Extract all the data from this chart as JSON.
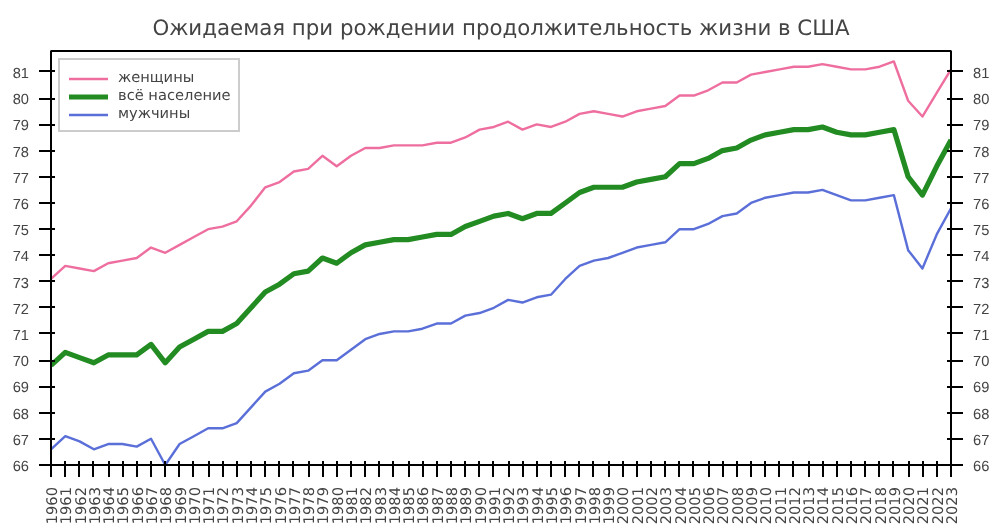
{
  "chart_data": {
    "type": "line",
    "title": "Ожидаемая при рождении продолжительность жизни в США",
    "x": [
      1960,
      1961,
      1962,
      1963,
      1964,
      1965,
      1966,
      1967,
      1968,
      1969,
      1970,
      1971,
      1972,
      1973,
      1974,
      1975,
      1976,
      1977,
      1978,
      1979,
      1980,
      1981,
      1982,
      1983,
      1984,
      1985,
      1986,
      1987,
      1988,
      1989,
      1990,
      1991,
      1992,
      1993,
      1994,
      1995,
      1996,
      1997,
      1998,
      1999,
      2000,
      2001,
      2002,
      2003,
      2004,
      2005,
      2006,
      2007,
      2008,
      2009,
      2010,
      2011,
      2012,
      2013,
      2014,
      2015,
      2016,
      2017,
      2018,
      2019,
      2020,
      2021,
      2022,
      2023
    ],
    "series": [
      {
        "name": "женщины",
        "color": "#ee6f9f",
        "values": [
          73.1,
          73.6,
          73.5,
          73.4,
          73.7,
          73.8,
          73.9,
          74.3,
          74.1,
          74.4,
          74.7,
          75.0,
          75.1,
          75.3,
          75.9,
          76.6,
          76.8,
          77.2,
          77.3,
          77.8,
          77.4,
          77.8,
          78.1,
          78.1,
          78.2,
          78.2,
          78.2,
          78.3,
          78.3,
          78.5,
          78.8,
          78.9,
          79.1,
          78.8,
          79.0,
          78.9,
          79.1,
          79.4,
          79.5,
          79.4,
          79.3,
          79.5,
          79.6,
          79.7,
          80.1,
          80.1,
          80.3,
          80.6,
          80.6,
          80.9,
          81.0,
          81.1,
          81.2,
          81.2,
          81.3,
          81.2,
          81.1,
          81.1,
          81.2,
          81.4,
          79.9,
          79.3,
          80.2,
          81.1
        ]
      },
      {
        "name": "всё население",
        "color": "#228b22",
        "values": [
          69.8,
          70.3,
          70.1,
          69.9,
          70.2,
          70.2,
          70.2,
          70.6,
          69.9,
          70.5,
          70.8,
          71.1,
          71.1,
          71.4,
          72.0,
          72.6,
          72.9,
          73.3,
          73.4,
          73.9,
          73.7,
          74.1,
          74.4,
          74.5,
          74.6,
          74.6,
          74.7,
          74.8,
          74.8,
          75.1,
          75.3,
          75.5,
          75.6,
          75.4,
          75.6,
          75.6,
          76.0,
          76.4,
          76.6,
          76.6,
          76.6,
          76.8,
          76.9,
          77.0,
          77.5,
          77.5,
          77.7,
          78.0,
          78.1,
          78.4,
          78.6,
          78.7,
          78.8,
          78.8,
          78.9,
          78.7,
          78.6,
          78.6,
          78.7,
          78.8,
          77.0,
          76.3,
          77.4,
          78.4
        ]
      },
      {
        "name": "мужчины",
        "color": "#5b6fd8",
        "values": [
          66.6,
          67.1,
          66.9,
          66.6,
          66.8,
          66.8,
          66.7,
          67.0,
          66.0,
          66.8,
          67.1,
          67.4,
          67.4,
          67.6,
          68.2,
          68.8,
          69.1,
          69.5,
          69.6,
          70.0,
          70.0,
          70.4,
          70.8,
          71.0,
          71.1,
          71.1,
          71.2,
          71.4,
          71.4,
          71.7,
          71.8,
          72.0,
          72.3,
          72.2,
          72.4,
          72.5,
          73.1,
          73.6,
          73.8,
          73.9,
          74.1,
          74.3,
          74.4,
          74.5,
          75.0,
          75.0,
          75.2,
          75.5,
          75.6,
          76.0,
          76.2,
          76.3,
          76.4,
          76.4,
          76.5,
          76.3,
          76.1,
          76.1,
          76.2,
          76.3,
          74.2,
          73.5,
          74.8,
          75.8
        ]
      }
    ],
    "xlim": [
      1960,
      2023
    ],
    "xticks": [
      1960,
      1961,
      1962,
      1963,
      1964,
      1965,
      1966,
      1967,
      1968,
      1969,
      1970,
      1971,
      1972,
      1973,
      1974,
      1975,
      1976,
      1977,
      1978,
      1979,
      1980,
      1981,
      1982,
      1983,
      1984,
      1985,
      1986,
      1987,
      1988,
      1989,
      1990,
      1991,
      1992,
      1993,
      1994,
      1995,
      1996,
      1997,
      1998,
      1999,
      2000,
      2001,
      2002,
      2003,
      2004,
      2005,
      2006,
      2007,
      2008,
      2009,
      2010,
      2011,
      2012,
      2013,
      2014,
      2015,
      2016,
      2017,
      2018,
      2019,
      2020,
      2021,
      2022,
      2023
    ],
    "ylim": [
      66,
      81.8
    ],
    "yticks": [
      66,
      67,
      68,
      69,
      70,
      71,
      72,
      73,
      74,
      75,
      76,
      77,
      78,
      79,
      80,
      81
    ],
    "y2lim": [
      66,
      81.8
    ],
    "y2ticks": [
      66,
      67,
      68,
      69,
      70,
      71,
      72,
      73,
      74,
      75,
      76,
      77,
      78,
      79,
      80,
      81
    ],
    "legend": "top left",
    "grid": false
  }
}
